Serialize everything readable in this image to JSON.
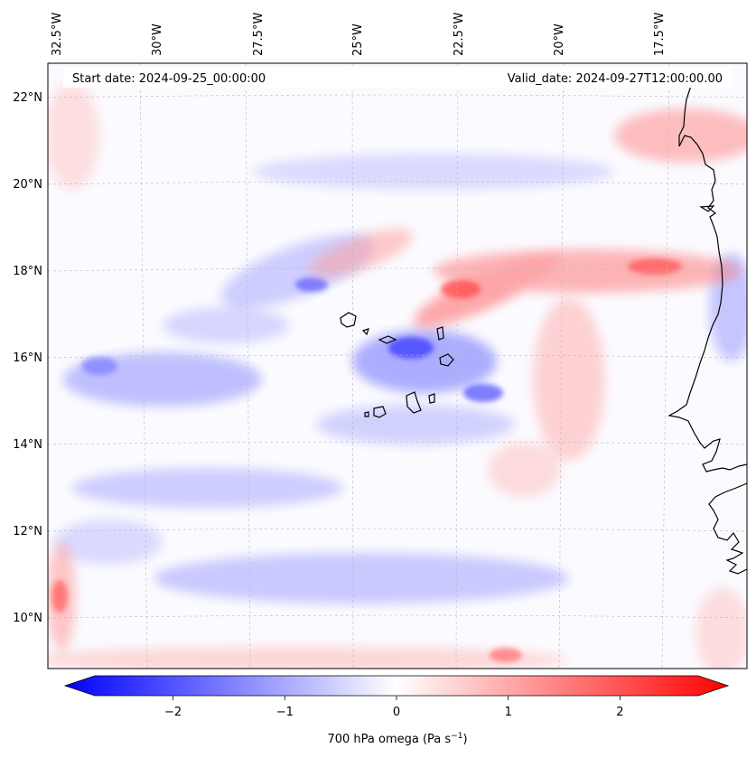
{
  "map": {
    "start_date_label": "Start date: 2024-09-25_00:00:00",
    "valid_date_label": "Valid_date: 2024-09-27T12:00:00.00",
    "longitude_labels": [
      "32.5°W",
      "30°W",
      "27.5°W",
      "25°W",
      "22.5°W",
      "20°W",
      "17.5°W"
    ],
    "latitude_labels": [
      "22°N",
      "20°N",
      "18°N",
      "16°N",
      "14°N",
      "12°N",
      "10°N"
    ],
    "field": "700 hPa omega",
    "land_regions": [
      "West African coast",
      "Cape Verde Islands"
    ]
  },
  "colorbar": {
    "label_main": "700 hPa omega (Pa s",
    "label_sup": "−1",
    "label_close": ")",
    "range": [
      -2.7,
      2.7
    ],
    "ticks": [
      {
        "value": -2,
        "label": "−2"
      },
      {
        "value": -1,
        "label": "−1"
      },
      {
        "value": 0,
        "label": "0"
      },
      {
        "value": 1,
        "label": "1"
      },
      {
        "value": 2,
        "label": "2"
      }
    ],
    "colors": {
      "negative": "#0000ff",
      "zero": "#ffffff",
      "positive": "#ff0000"
    }
  }
}
